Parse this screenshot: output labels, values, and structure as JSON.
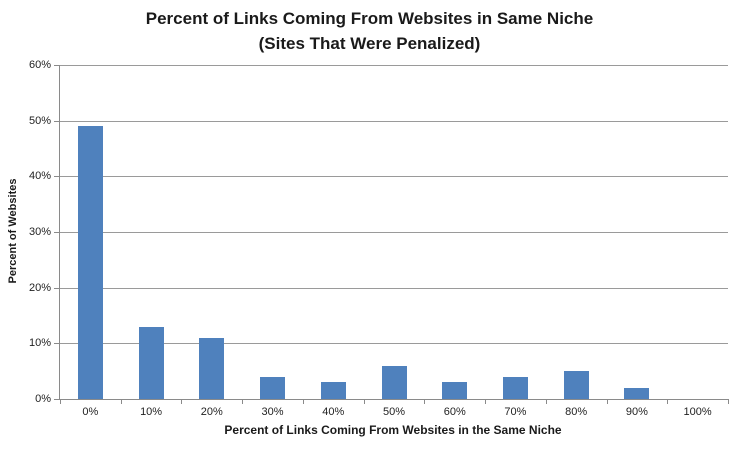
{
  "chart_data": {
    "type": "bar",
    "title_line1": "Percent of Links Coming From Websites in Same Niche",
    "title_line2": "(Sites That Were Penalized)",
    "xlabel": "Percent of Links Coming From Websites in the Same Niche",
    "ylabel": "Percent of Websites",
    "categories": [
      "0%",
      "10%",
      "20%",
      "30%",
      "40%",
      "50%",
      "60%",
      "70%",
      "80%",
      "90%",
      "100%"
    ],
    "values": [
      49,
      13,
      11,
      4,
      3,
      6,
      3,
      4,
      5,
      2,
      0
    ],
    "ylim": [
      0,
      60
    ],
    "ytick_step": 10,
    "ytick_labels": [
      "0%",
      "10%",
      "20%",
      "30%",
      "40%",
      "50%",
      "60%"
    ],
    "grid": true,
    "legend": "none",
    "bar_color": "#4F81BD",
    "gridline_color": "#9a9a9a",
    "axis_color": "#8a8a8a",
    "text_color": "#1f1f1f"
  }
}
